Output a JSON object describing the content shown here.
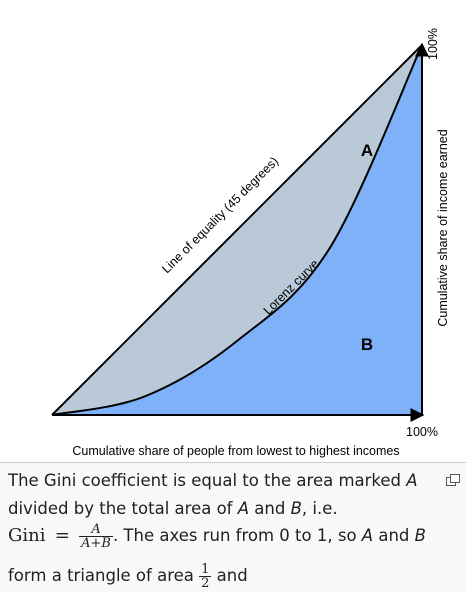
{
  "figure": {
    "chart_data": {
      "type": "area",
      "xlabel": "Cumulative share of people from lowest to highest incomes",
      "ylabel": "Cumulative share of income earned",
      "x_end_label": "100%",
      "y_end_label": "100%",
      "xlim": [
        0,
        1
      ],
      "ylim": [
        0,
        1
      ],
      "series": [
        {
          "name": "Line of equality (45 degrees)",
          "x": [
            0,
            1
          ],
          "y": [
            0,
            1
          ]
        },
        {
          "name": "Lorenz curve",
          "x": [
            0,
            0.25,
            0.5,
            0.75,
            1
          ],
          "y": [
            0,
            0.05,
            0.2,
            0.45,
            1
          ]
        }
      ],
      "regions": [
        {
          "label": "A",
          "color": "#b9c9d8"
        },
        {
          "label": "B",
          "color": "#7eb1f7"
        }
      ],
      "grid": false
    }
  },
  "caption": {
    "line1_pre": "The Gini coefficient is equal to the area marked ",
    "var_A": "A",
    "line2_pre": "divided by the total area of ",
    "line2_mid": " and ",
    "var_B": "B",
    "line2_post": ", i.e.",
    "gini_label": "Gini",
    "equals": "=",
    "frac_num": "A",
    "frac_den": "A+B",
    "line3_post": ". The axes run from 0 to 1, so ",
    "line3_and": " and ",
    "line4_pre": "form a triangle of area ",
    "half_num": "1",
    "half_den": "2",
    "line4_post": " and"
  }
}
